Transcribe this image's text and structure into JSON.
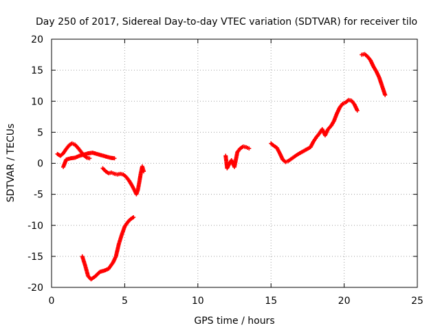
{
  "chart_data": {
    "type": "scatter",
    "title": "Day 250 of 2017, Sidereal Day-to-day VTEC variation (SDTVAR) for receiver tilo",
    "xlabel": "GPS time / hours",
    "ylabel": "SDTVAR / TECUs",
    "xlim": [
      0,
      25
    ],
    "ylim": [
      -20,
      20
    ],
    "xticks": [
      0,
      5,
      10,
      15,
      20,
      25
    ],
    "yticks": [
      -20,
      -15,
      -10,
      -5,
      0,
      5,
      10,
      15,
      20
    ],
    "grid": true,
    "marker": "plus",
    "color": "#ff0000",
    "segments": [
      {
        "x": [
          0.4,
          0.6,
          0.8,
          1.0,
          1.2,
          1.4,
          1.6,
          1.8,
          2.0,
          2.2,
          2.4,
          2.6
        ],
        "y": [
          1.5,
          1.2,
          1.6,
          2.3,
          2.9,
          3.2,
          3.0,
          2.5,
          1.9,
          1.3,
          0.9,
          0.8
        ]
      },
      {
        "x": [
          0.8,
          1.0,
          1.3,
          1.6,
          1.9,
          2.2,
          2.5,
          2.8,
          3.1,
          3.4,
          3.7,
          4.0,
          4.3
        ],
        "y": [
          -0.6,
          0.6,
          0.8,
          0.9,
          1.2,
          1.4,
          1.6,
          1.7,
          1.5,
          1.3,
          1.1,
          0.9,
          0.8
        ]
      },
      {
        "x": [
          3.5,
          3.7,
          3.9,
          4.1,
          4.3,
          4.5,
          4.7,
          4.9,
          5.1,
          5.3,
          5.5,
          5.7,
          5.8,
          5.9,
          6.0,
          6.1,
          6.2,
          6.3
        ],
        "y": [
          -0.8,
          -1.3,
          -1.6,
          -1.5,
          -1.7,
          -1.8,
          -1.7,
          -1.8,
          -2.2,
          -2.8,
          -3.6,
          -4.5,
          -5.0,
          -4.3,
          -3.0,
          -1.6,
          -0.5,
          -1.3
        ]
      },
      {
        "x": [
          2.1,
          2.3,
          2.5,
          2.7,
          3.0,
          3.3,
          3.6,
          3.9,
          4.2,
          4.4,
          4.6,
          4.8,
          5.0,
          5.2,
          5.4,
          5.6
        ],
        "y": [
          -15.0,
          -16.5,
          -18.2,
          -18.7,
          -18.2,
          -17.5,
          -17.3,
          -17.0,
          -16.0,
          -15.0,
          -13.0,
          -11.5,
          -10.2,
          -9.5,
          -9.0,
          -8.7
        ]
      },
      {
        "x": [
          11.9,
          12.0,
          12.1,
          12.3,
          12.5,
          12.7,
          12.9,
          13.1,
          13.3,
          13.5
        ],
        "y": [
          1.2,
          -0.8,
          -0.3,
          0.5,
          -0.6,
          1.8,
          2.4,
          2.7,
          2.6,
          2.4
        ]
      },
      {
        "x": [
          15.0,
          15.2,
          15.4,
          15.6,
          15.8,
          16.0,
          16.2,
          16.5,
          16.8,
          17.1,
          17.4,
          17.7,
          17.9,
          18.1,
          18.3,
          18.5,
          18.7,
          18.9,
          19.1,
          19.3,
          19.5,
          19.7,
          19.9,
          20.1,
          20.3,
          20.5,
          20.7,
          20.9
        ],
        "y": [
          3.2,
          2.8,
          2.5,
          1.6,
          0.6,
          0.2,
          0.4,
          0.9,
          1.4,
          1.8,
          2.2,
          2.6,
          3.5,
          4.2,
          4.8,
          5.5,
          4.5,
          5.5,
          6.0,
          6.8,
          8.0,
          9.0,
          9.6,
          9.8,
          10.2,
          10.1,
          9.5,
          8.5
        ]
      },
      {
        "x": [
          21.2,
          21.4,
          21.6,
          21.8,
          22.0,
          22.2,
          22.4,
          22.6,
          22.8
        ],
        "y": [
          17.5,
          17.6,
          17.2,
          16.6,
          15.6,
          14.8,
          13.8,
          12.4,
          11.0
        ]
      }
    ]
  }
}
